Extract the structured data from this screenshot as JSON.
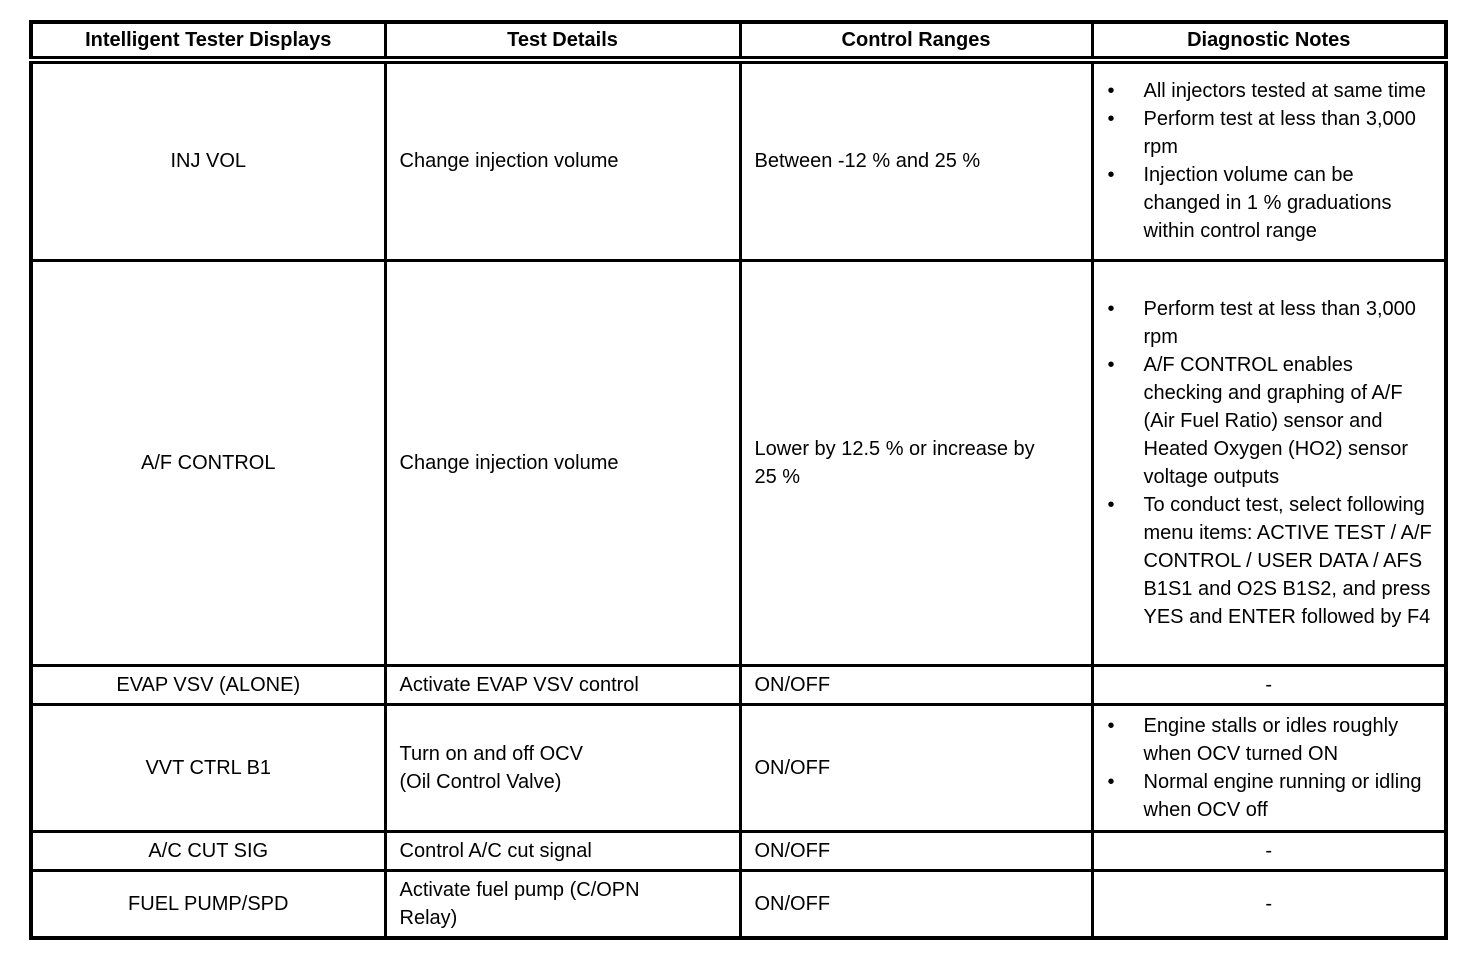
{
  "page": {
    "background_color": "#ffffff",
    "border_color": "#000000"
  },
  "table": {
    "headers": [
      "Intelligent Tester Displays",
      "Test Details",
      "Control Ranges",
      "Diagnostic Notes"
    ],
    "rows": [
      {
        "display": "INJ VOL",
        "test_details": "Change injection volume",
        "control_ranges": "Between -12 % and 25 %",
        "notes": [
          "All injectors tested at same time",
          "Perform test at less than 3,000 rpm",
          "Injection volume can be changed in 1 % graduations within control range"
        ]
      },
      {
        "display": "A/F CONTROL",
        "test_details": "Change injection volume",
        "control_ranges": "Lower by 12.5 % or increase by\n25 %",
        "notes": [
          "Perform test at less than 3,000 rpm",
          "A/F CONTROL enables checking and graphing of A/F (Air Fuel Ratio) sensor and Heated Oxygen (HO2) sensor voltage outputs",
          "To conduct test, select following menu items: ACTIVE TEST / A/F CONTROL / USER DATA / AFS B1S1 and O2S B1S2, and press YES and ENTER followed by F4"
        ]
      },
      {
        "display": "EVAP VSV (ALONE)",
        "test_details": "Activate EVAP VSV control",
        "control_ranges": "ON/OFF",
        "notes": "-"
      },
      {
        "display": "VVT CTRL B1",
        "test_details": "Turn on and off OCV\n(Oil Control Valve)",
        "control_ranges": "ON/OFF",
        "notes": [
          "Engine stalls or idles roughly when OCV turned ON",
          "Normal engine running or idling when OCV off"
        ]
      },
      {
        "display": "A/C CUT SIG",
        "test_details": "Control A/C cut signal",
        "control_ranges": "ON/OFF",
        "notes": "-"
      },
      {
        "display": "FUEL PUMP/SPD",
        "test_details": "Activate fuel pump (C/OPN\nRelay)",
        "control_ranges": "ON/OFF",
        "notes": "-"
      }
    ]
  }
}
